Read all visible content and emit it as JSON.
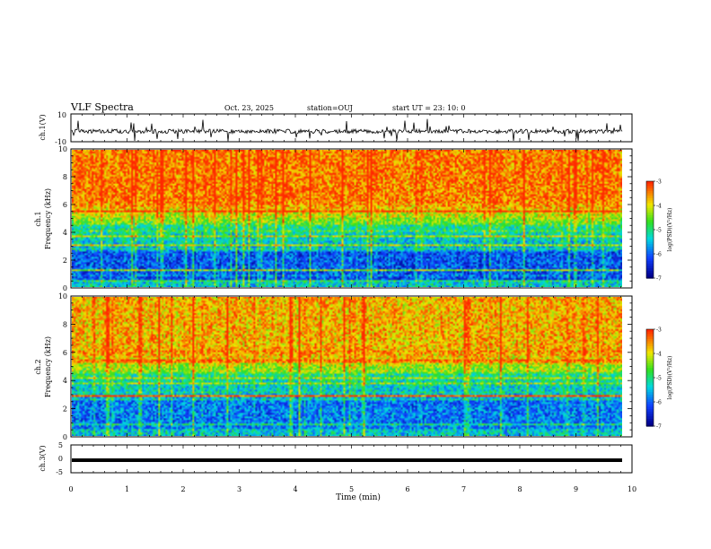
{
  "header": {
    "title": "VLF Spectra",
    "date": "Oct. 23, 2025",
    "station": "station=OUJ",
    "start_ut": "start UT =  23: 10: 0"
  },
  "chart_data": [
    {
      "type": "line",
      "title": "ch.1 waveform",
      "ylabel": "ch.1(V)",
      "ylim": [
        -10,
        10
      ],
      "y_ticks": [
        "10",
        "-10"
      ],
      "baseline": -2.5,
      "xlim": [
        0,
        10
      ]
    },
    {
      "type": "heatmap",
      "title": "ch.1 spectrogram",
      "ylabel": "ch.1\nFrequency (kHz)",
      "ylabel_line1": "ch.1",
      "ylabel_line2": "Frequency (kHz)",
      "ylim": [
        0,
        10
      ],
      "y_ticks": [
        "0",
        "2",
        "4",
        "6",
        "8",
        "10"
      ],
      "xlim": [
        0,
        9.8
      ],
      "colorbar": {
        "label": "log(PSD)(V²/Hz)",
        "range": [
          -7,
          -3
        ],
        "ticks": [
          "-3",
          "-4",
          "-5",
          "-6",
          "-7"
        ]
      }
    },
    {
      "type": "heatmap",
      "title": "ch.2 spectrogram",
      "ylabel_line1": "ch.2",
      "ylabel_line2": "Frequency (kHz)",
      "ylim": [
        0,
        10
      ],
      "y_ticks": [
        "0",
        "2",
        "4",
        "6",
        "8",
        "10"
      ],
      "xlim": [
        0,
        9.8
      ],
      "colorbar": {
        "label": "log(PSD)(V²/Hz)",
        "range": [
          -7,
          -3
        ],
        "ticks": [
          "-3",
          "-4",
          "-5",
          "-6",
          "-7"
        ]
      }
    },
    {
      "type": "line",
      "title": "ch.3 waveform",
      "ylabel": "ch.3(V)",
      "ylim": [
        -5,
        5
      ],
      "y_ticks": [
        "5",
        "0",
        "-5"
      ],
      "constant_value": -0.5,
      "xlim": [
        0,
        10
      ]
    }
  ],
  "x_axis": {
    "label": "Time (min)",
    "range": [
      0,
      10
    ],
    "ticks": [
      "0",
      "1",
      "2",
      "3",
      "4",
      "5",
      "6",
      "7",
      "8",
      "9",
      "10"
    ]
  },
  "colors": {
    "red": "#ff2a00",
    "yellow": "#f0e800",
    "green": "#30e020",
    "cyan": "#00d8e0",
    "blue": "#1040ff",
    "navy": "#00008a"
  }
}
